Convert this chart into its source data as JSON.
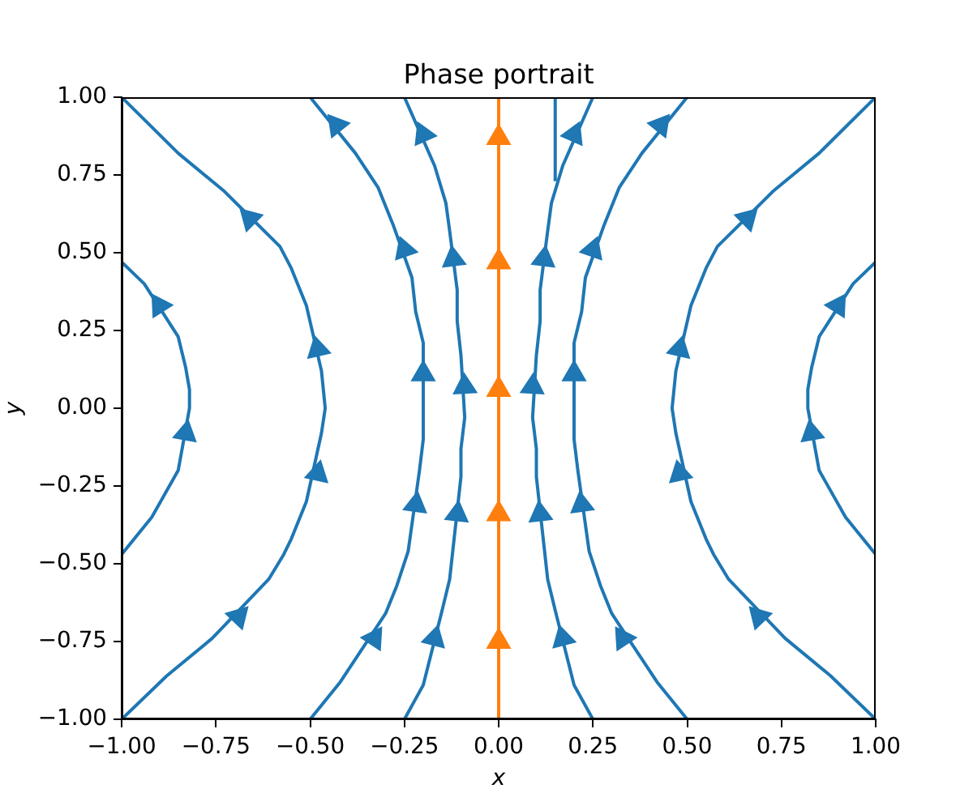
{
  "chart_data": {
    "type": "line",
    "title": "Phase portrait",
    "xlabel": "x",
    "ylabel": "y",
    "xlim": [
      -1,
      1
    ],
    "ylim": [
      -1,
      1
    ],
    "xticks": [
      {
        "value": -1,
        "label": "−1.00"
      },
      {
        "value": -0.75,
        "label": "−0.75"
      },
      {
        "value": -0.5,
        "label": "−0.50"
      },
      {
        "value": -0.25,
        "label": "−0.25"
      },
      {
        "value": 0,
        "label": "0.00"
      },
      {
        "value": 0.25,
        "label": "0.25"
      },
      {
        "value": 0.5,
        "label": "0.50"
      },
      {
        "value": 0.75,
        "label": "0.75"
      },
      {
        "value": 1,
        "label": "1.00"
      }
    ],
    "yticks": [
      {
        "value": -1,
        "label": "−1.00"
      },
      {
        "value": -0.75,
        "label": "−0.75"
      },
      {
        "value": -0.5,
        "label": "−0.50"
      },
      {
        "value": -0.25,
        "label": "−0.25"
      },
      {
        "value": 0,
        "label": "0.00"
      },
      {
        "value": 0.25,
        "label": "0.25"
      },
      {
        "value": 0.5,
        "label": "0.50"
      },
      {
        "value": 0.75,
        "label": "0.75"
      },
      {
        "value": 1,
        "label": "1.00"
      }
    ],
    "marker": "none",
    "series": [
      {
        "color": "#1f77b4",
        "x": [
          -1,
          -0.92,
          -0.85,
          -0.82,
          -0.82,
          -0.83,
          -0.85,
          -0.94,
          -1
        ],
        "values": [
          -0.47,
          -0.35,
          -0.2,
          0,
          0.06,
          0.13,
          0.23,
          0.4,
          0.47
        ]
      },
      {
        "color": "#1f77b4",
        "x": [
          -1,
          -0.88,
          -0.76,
          -0.61,
          -0.57,
          -0.55,
          -0.51,
          -0.47,
          -0.46,
          -0.47,
          -0.51,
          -0.55,
          -0.58,
          -0.73,
          -0.85,
          -1
        ],
        "values": [
          -1,
          -0.86,
          -0.74,
          -0.55,
          -0.47,
          -0.42,
          -0.3,
          -0.08,
          0,
          0.12,
          0.33,
          0.45,
          0.52,
          0.7,
          0.82,
          1
        ]
      },
      {
        "color": "#1f77b4",
        "x": [
          -0.5,
          -0.42,
          -0.3,
          -0.27,
          -0.24,
          -0.21,
          -0.2,
          -0.2,
          -0.22,
          -0.23,
          -0.28,
          -0.32,
          -0.38,
          -0.5
        ],
        "values": [
          -1,
          -0.88,
          -0.66,
          -0.57,
          -0.46,
          -0.2,
          -0.1,
          0.21,
          0.31,
          0.42,
          0.59,
          0.71,
          0.82,
          1
        ]
      },
      {
        "color": "#1f77b4",
        "x": [
          -0.25,
          -0.2,
          -0.15,
          -0.13,
          -0.12,
          -0.1,
          -0.1,
          -0.09,
          -0.1,
          -0.11,
          -0.11,
          -0.13,
          -0.14,
          -0.17,
          -0.25
        ],
        "values": [
          -1,
          -0.89,
          -0.65,
          -0.55,
          -0.44,
          -0.22,
          -0.13,
          -0.03,
          0.17,
          0.28,
          0.38,
          0.57,
          0.66,
          0.78,
          1
        ]
      },
      {
        "color": "#1f77b4",
        "x": [
          0.25,
          0.2,
          0.15,
          0.13,
          0.12,
          0.1,
          0.1,
          0.09,
          0.1,
          0.11,
          0.11,
          0.13,
          0.14,
          0.17,
          0.25
        ],
        "values": [
          -1,
          -0.89,
          -0.65,
          -0.55,
          -0.44,
          -0.22,
          -0.13,
          -0.03,
          0.17,
          0.28,
          0.38,
          0.57,
          0.66,
          0.78,
          1
        ]
      },
      {
        "color": "#1f77b4",
        "x": [
          0.5,
          0.42,
          0.3,
          0.27,
          0.24,
          0.21,
          0.2,
          0.2,
          0.22,
          0.23,
          0.28,
          0.32,
          0.38,
          0.5
        ],
        "values": [
          -1,
          -0.88,
          -0.66,
          -0.57,
          -0.46,
          -0.2,
          -0.1,
          0.21,
          0.31,
          0.42,
          0.59,
          0.71,
          0.82,
          1
        ]
      },
      {
        "color": "#1f77b4",
        "x": [
          1,
          0.88,
          0.76,
          0.61,
          0.57,
          0.55,
          0.51,
          0.47,
          0.46,
          0.47,
          0.51,
          0.55,
          0.58,
          0.73,
          0.85,
          1
        ],
        "values": [
          -1,
          -0.86,
          -0.74,
          -0.55,
          -0.47,
          -0.42,
          -0.3,
          -0.08,
          0,
          0.12,
          0.33,
          0.45,
          0.52,
          0.7,
          0.82,
          1
        ]
      },
      {
        "color": "#1f77b4",
        "x": [
          1,
          0.92,
          0.85,
          0.82,
          0.82,
          0.83,
          0.85,
          0.94,
          1
        ],
        "values": [
          -0.47,
          -0.35,
          -0.2,
          0,
          0.06,
          0.13,
          0.23,
          0.4,
          0.47
        ]
      },
      {
        "color": "#1f77b4",
        "x": [
          0.15,
          0.15
        ],
        "values": [
          0.73,
          1
        ]
      },
      {
        "type": "scatter",
        "marker": "triangle",
        "color": "#1f77b4",
        "x": [
          -0.83,
          -0.9,
          -0.69,
          -0.48,
          -0.48,
          -0.66,
          -0.33,
          -0.22,
          -0.2,
          -0.25,
          -0.43,
          -0.17,
          -0.11,
          -0.09,
          -0.12,
          -0.2,
          0.83,
          0.9,
          0.69,
          0.48,
          0.48,
          0.66,
          0.33,
          0.22,
          0.2,
          0.25,
          0.43,
          0.17,
          0.11,
          0.09,
          0.12,
          0.2
        ],
        "values": [
          -0.08,
          0.33,
          -0.67,
          -0.21,
          0.19,
          0.61,
          -0.74,
          -0.31,
          0.11,
          0.51,
          0.91,
          -0.74,
          -0.34,
          0.07,
          0.48,
          0.88,
          -0.08,
          0.33,
          -0.67,
          -0.21,
          0.19,
          0.61,
          -0.74,
          -0.31,
          0.11,
          0.51,
          0.91,
          -0.74,
          -0.34,
          0.07,
          0.48,
          0.88
        ]
      },
      {
        "color": "#ff7f0e",
        "x": [
          0,
          0
        ],
        "values": [
          -1,
          1
        ]
      },
      {
        "type": "scatter",
        "marker": "triangle",
        "color": "#ff7f0e",
        "x": [
          0,
          0,
          0,
          0,
          0
        ],
        "values": [
          -0.75,
          -0.34,
          0.06,
          0.47,
          0.87
        ]
      }
    ]
  }
}
